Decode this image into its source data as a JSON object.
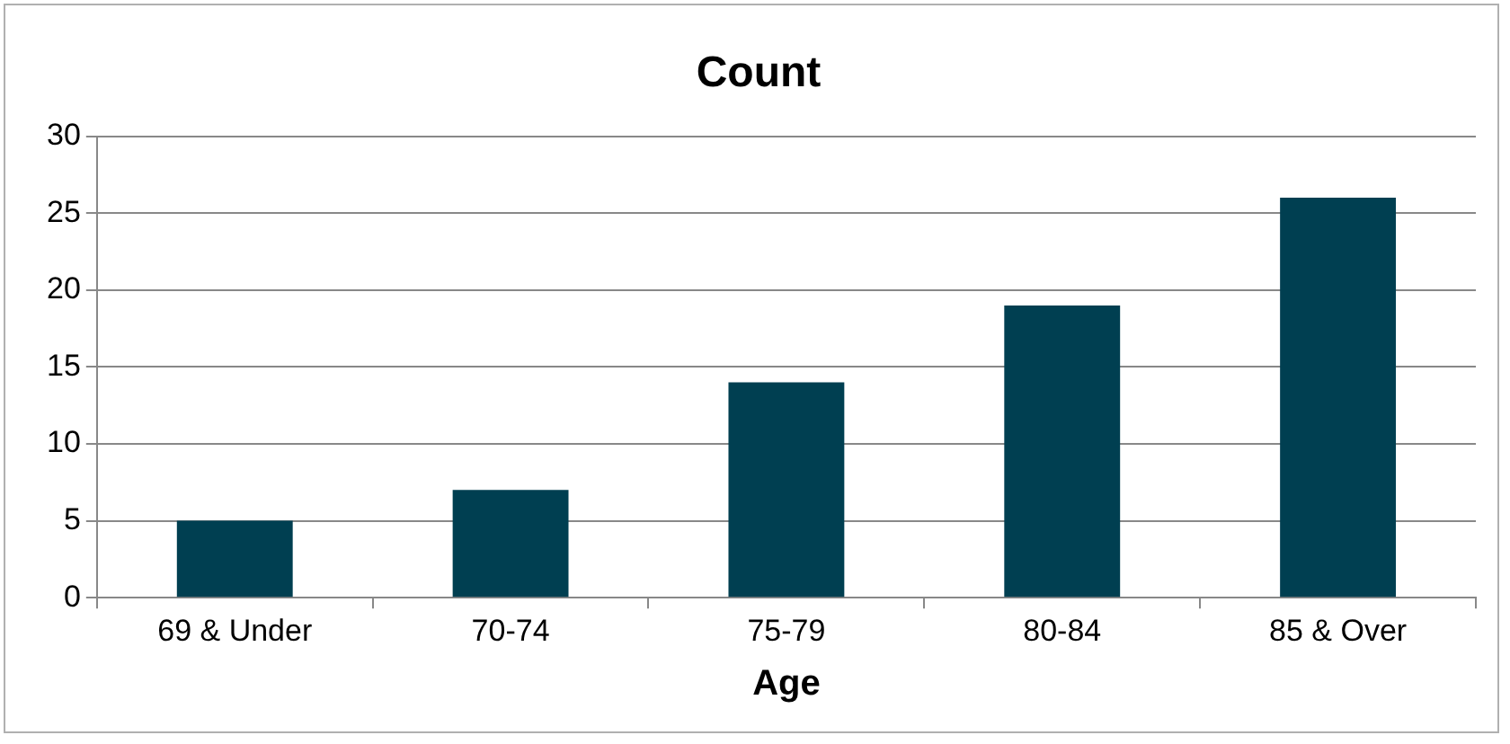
{
  "chart_data": {
    "type": "bar",
    "title": "Count",
    "xlabel": "Age",
    "categories": [
      "69 & Under",
      "70-74",
      "75-79",
      "80-84",
      "85 & Over"
    ],
    "values": [
      5,
      7,
      14,
      19,
      26
    ],
    "color": "#003f51",
    "ylim": [
      0,
      30
    ],
    "yticks": [
      0,
      5,
      10,
      15,
      20,
      25,
      30
    ],
    "grid": "y",
    "legend": false
  }
}
